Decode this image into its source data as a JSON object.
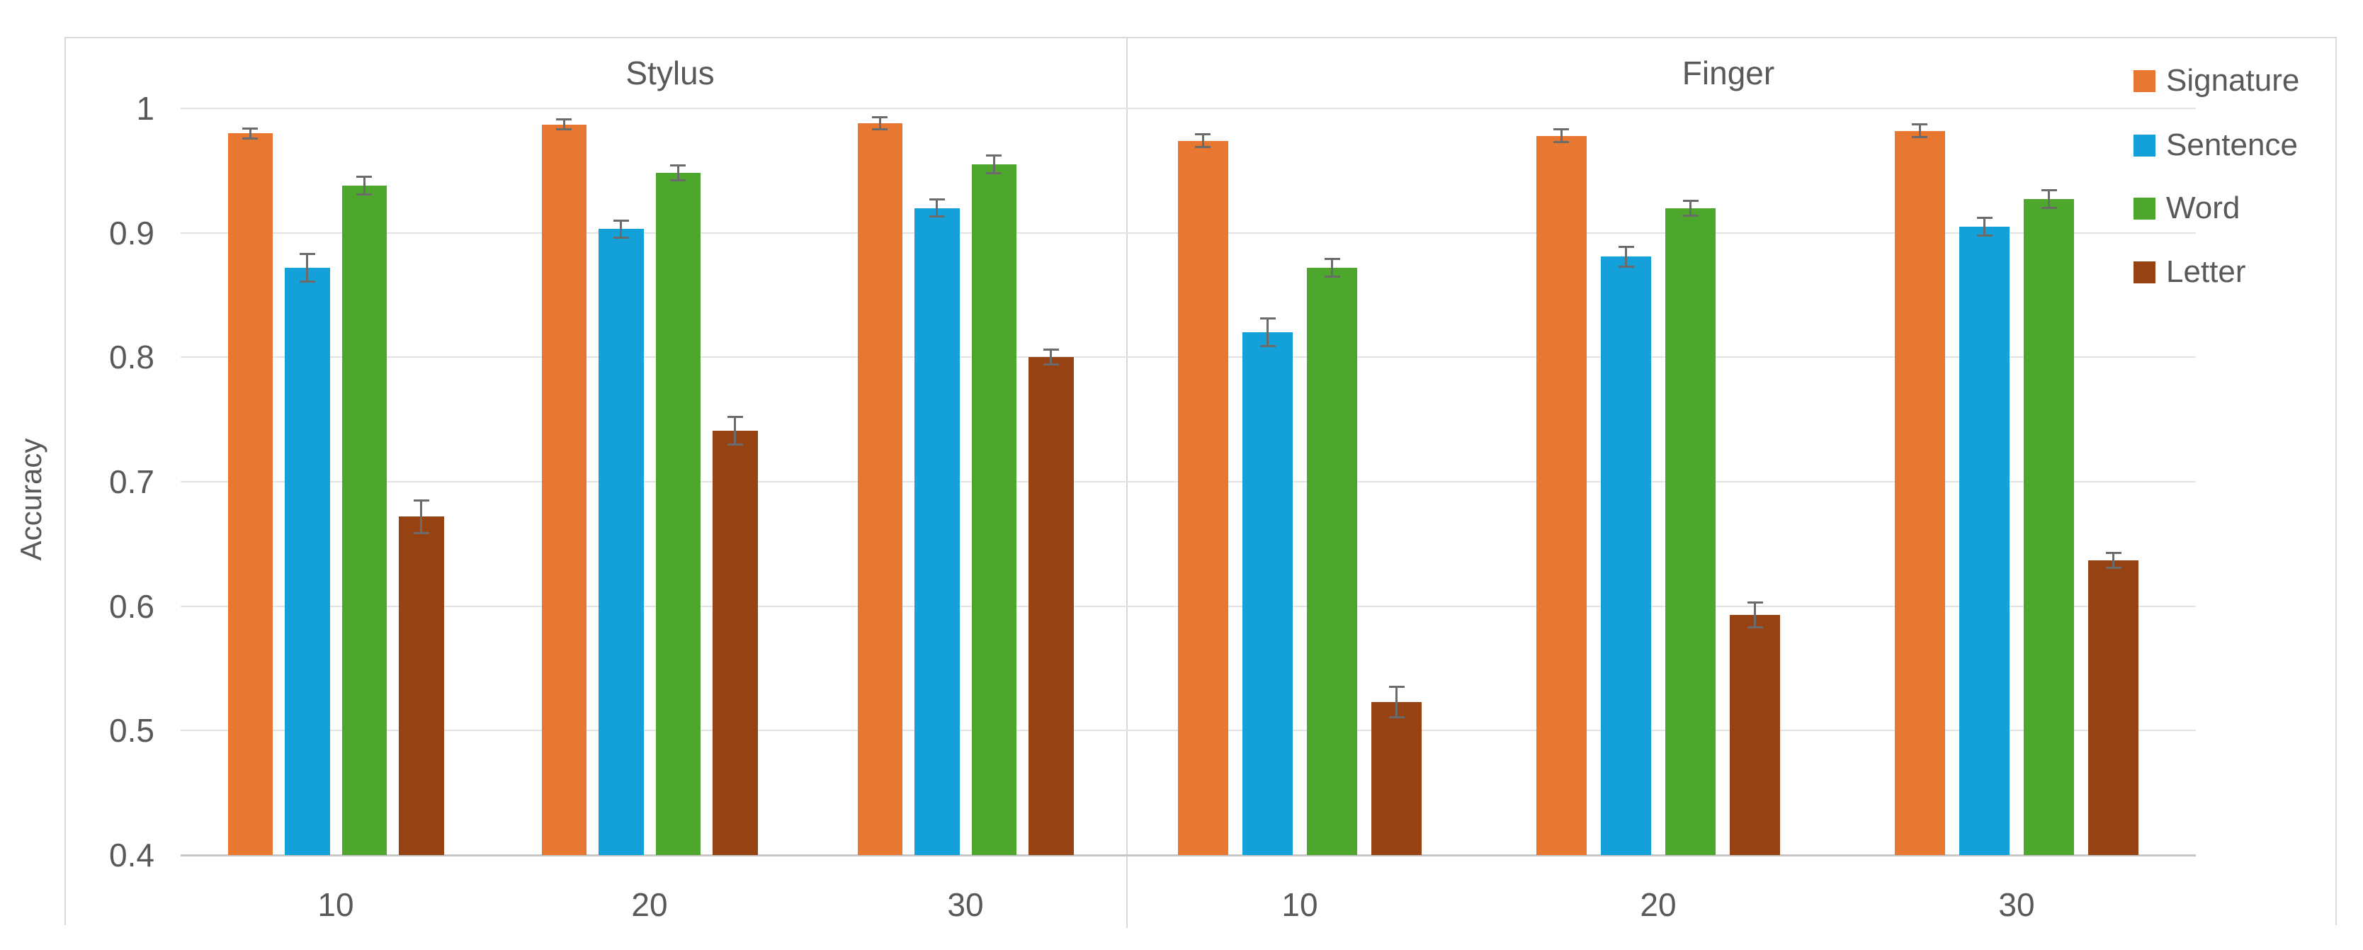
{
  "chart_data": {
    "type": "bar",
    "title": "",
    "ylabel": "Accuracy",
    "xlabel": "",
    "ylim": [
      0.4,
      1.0
    ],
    "yticks": [
      1,
      0.9,
      0.8,
      0.7,
      0.6,
      0.5,
      0.4
    ],
    "ytick_labels": [
      "1",
      "0.9",
      "0.8",
      "0.7",
      "0.6",
      "0.5",
      "0.4"
    ],
    "grid": true,
    "error_bars": true,
    "legend_position": "top-right",
    "legend": [
      "Signature",
      "Sentence",
      "Word",
      "Letter"
    ],
    "panels": [
      {
        "label": "Stylus",
        "categories": [
          "10",
          "20",
          "30"
        ],
        "series": [
          {
            "name": "Signature",
            "color": "#E77731",
            "values": [
              0.98,
              0.987,
              0.988
            ],
            "errors": [
              0.004,
              0.004,
              0.005
            ]
          },
          {
            "name": "Sentence",
            "color": "#14A0D8",
            "values": [
              0.872,
              0.903,
              0.92
            ],
            "errors": [
              0.011,
              0.007,
              0.007
            ]
          },
          {
            "name": "Word",
            "color": "#4DA72C",
            "values": [
              0.938,
              0.948,
              0.955
            ],
            "errors": [
              0.007,
              0.006,
              0.007
            ]
          },
          {
            "name": "Letter",
            "color": "#974213",
            "values": [
              0.672,
              0.741,
              0.8
            ],
            "errors": [
              0.013,
              0.011,
              0.006
            ]
          }
        ]
      },
      {
        "label": "Finger",
        "categories": [
          "10",
          "20",
          "30"
        ],
        "series": [
          {
            "name": "Signature",
            "color": "#E77731",
            "values": [
              0.974,
              0.978,
              0.982
            ],
            "errors": [
              0.005,
              0.005,
              0.005
            ]
          },
          {
            "name": "Sentence",
            "color": "#14A0D8",
            "values": [
              0.82,
              0.881,
              0.905
            ],
            "errors": [
              0.011,
              0.008,
              0.007
            ]
          },
          {
            "name": "Word",
            "color": "#4DA72C",
            "values": [
              0.872,
              0.92,
              0.927
            ],
            "errors": [
              0.007,
              0.006,
              0.007
            ]
          },
          {
            "name": "Letter",
            "color": "#974213",
            "values": [
              0.523,
              0.593,
              0.637
            ],
            "errors": [
              0.012,
              0.01,
              0.006
            ]
          }
        ]
      }
    ],
    "styles": {
      "axis_text_color": "#595959",
      "gridline_color": "#E3E3E3",
      "axis_line_color": "#C7C7C7",
      "border_color": "#D9D9D9",
      "error_bar_color": "#6B6B6B",
      "background": "#FFFFFF"
    }
  }
}
